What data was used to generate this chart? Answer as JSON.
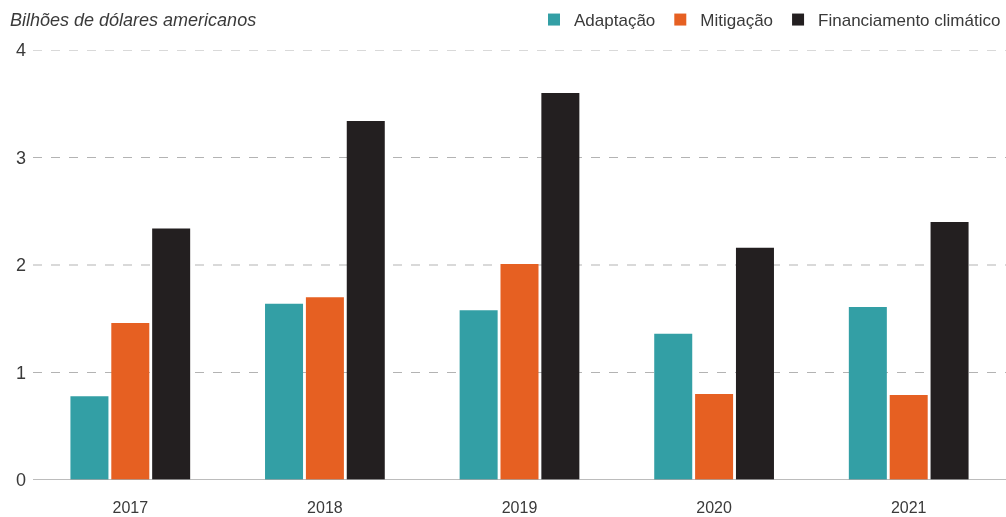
{
  "chart_data": {
    "type": "bar",
    "ylabel": "Bilhões de dólares americanos",
    "categories": [
      "2017",
      "2018",
      "2019",
      "2020",
      "2021"
    ],
    "series": [
      {
        "name": "Adaptação",
        "color": "#339fa5",
        "values": [
          0.78,
          1.64,
          1.58,
          1.36,
          1.61
        ]
      },
      {
        "name": "Mitigação",
        "color": "#e66022",
        "values": [
          1.46,
          1.7,
          2.01,
          0.8,
          0.79
        ]
      },
      {
        "name": "Financiamento climático",
        "color": "#231f20",
        "values": [
          2.34,
          3.34,
          3.6,
          2.16,
          2.4
        ]
      }
    ],
    "ylim": [
      0,
      4
    ],
    "yticks": [
      0,
      1,
      2,
      3,
      4
    ],
    "grid": "y",
    "legend": "top right"
  }
}
